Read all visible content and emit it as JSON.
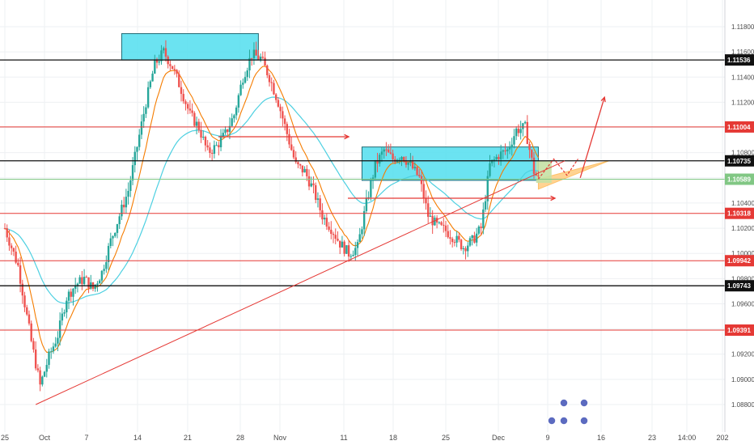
{
  "chart_data": {
    "type": "candlestick",
    "instrument_hint": "EUR/USD style price chart",
    "grid": true,
    "colors": {
      "bull": "#26a69a",
      "bear": "#ef5350",
      "ema_fast": "#f57c00",
      "ema_slow": "#4dd0e1",
      "zone_fill": "#5ce1f0",
      "triangle_fill": "#ffcc80",
      "red_level": "#e53935",
      "black_level": "#111111",
      "green_tag": "#81c784"
    },
    "y_axis": {
      "ticks": [
        "1.11800",
        "1.11600",
        "1.11400",
        "1.11200",
        "1.11000",
        "1.10800",
        "1.10600",
        "1.10400",
        "1.10200",
        "1.10000",
        "1.09800",
        "1.09600",
        "1.09400",
        "1.09200",
        "1.09000",
        "1.08800"
      ],
      "range": [
        1.0868,
        1.1192
      ]
    },
    "x_axis": {
      "ticks": [
        "25",
        "Oct",
        "7",
        "14",
        "21",
        "28",
        "Nov",
        "11",
        "18",
        "25",
        "Dec",
        "9",
        "16",
        "23",
        "14:00",
        "202"
      ]
    },
    "levels": [
      {
        "price": 1.11536,
        "label": "1.11536",
        "color": "black"
      },
      {
        "price": 1.11004,
        "label": "1.11004",
        "color": "red"
      },
      {
        "price": 1.10735,
        "label": "1.10735",
        "color": "black"
      },
      {
        "price": 1.10589,
        "label": "1.10589",
        "color": "green"
      },
      {
        "price": 1.10318,
        "label": "1.10318",
        "color": "red"
      },
      {
        "price": 1.09942,
        "label": "1.09942",
        "color": "red"
      },
      {
        "price": 1.09743,
        "label": "1.09743",
        "color": "black"
      },
      {
        "price": 1.09391,
        "label": "1.09391",
        "color": "red"
      }
    ],
    "zones": [
      {
        "name": "upper-supply-zone",
        "day_from": 26.5,
        "day_to": 57.5,
        "price_top": 1.11745,
        "price_bottom": 1.11536
      },
      {
        "name": "middle-zone",
        "day_from": 81,
        "day_to": 121,
        "price_top": 1.10845,
        "price_bottom": 1.1058
      }
    ],
    "trendline": {
      "from": {
        "day": 7,
        "price": 1.088
      },
      "to": {
        "day": 127,
        "price": 1.10735
      }
    },
    "ohlc": []
  }
}
